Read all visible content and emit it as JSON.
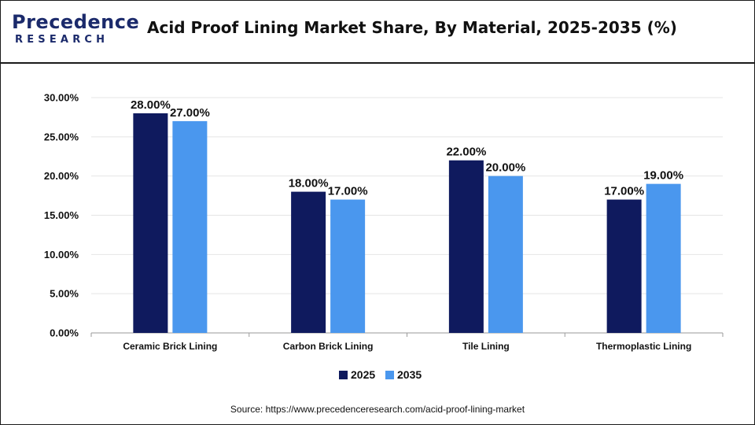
{
  "brand": {
    "name": "Precedence",
    "sub": "RESEARCH"
  },
  "title": "Acid Proof Lining Market Share, By Material, 2025-2035 (%)",
  "source": "Source: https://www.precedenceresearch.com/acid-proof-lining-market",
  "colors": {
    "2025": "#0f1a5e",
    "2035": "#4a97ee",
    "brand": "#1b2a6b"
  },
  "chart_data": {
    "type": "bar",
    "title": "Acid Proof Lining Market Share, By Material, 2025-2035 (%)",
    "xlabel": "",
    "ylabel": "",
    "categories": [
      "Ceramic Brick Lining",
      "Carbon Brick Lining",
      "Tile Lining",
      "Thermoplastic Lining"
    ],
    "series": [
      {
        "name": "2025",
        "values": [
          28.0,
          18.0,
          22.0,
          17.0
        ],
        "labels": [
          "28.00%",
          "18.00%",
          "22.00%",
          "17.00%"
        ]
      },
      {
        "name": "2035",
        "values": [
          27.0,
          17.0,
          20.0,
          19.0
        ],
        "labels": [
          "27.00%",
          "17.00%",
          "20.00%",
          "19.00%"
        ]
      }
    ],
    "ylim": [
      0,
      30
    ],
    "yticks": [
      0,
      5,
      10,
      15,
      20,
      25,
      30
    ],
    "ytick_labels": [
      "0.00%",
      "5.00%",
      "10.00%",
      "15.00%",
      "20.00%",
      "25.00%",
      "30.00%"
    ],
    "grid": true,
    "legend": "bottom"
  }
}
